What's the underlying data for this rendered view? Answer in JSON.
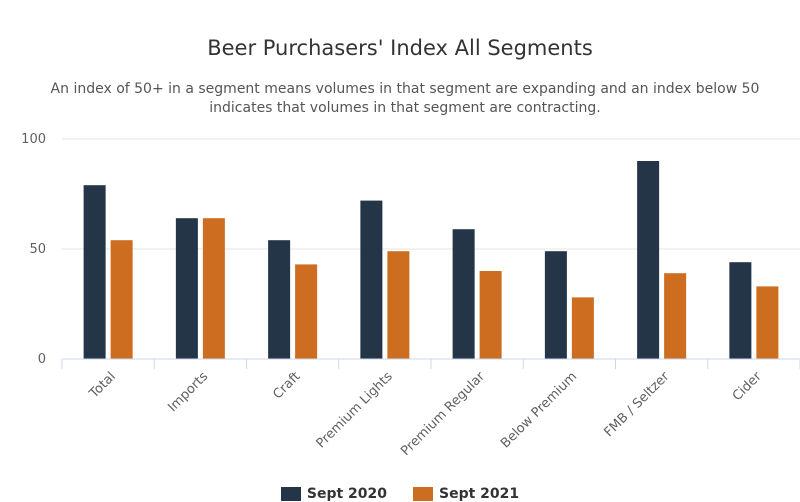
{
  "chart_data": {
    "type": "bar",
    "title": "Beer Purchasers' Index All Segments",
    "subtitle": "An index of 50+ in a segment means volumes in that segment are expanding and an index below 50 indicates that volumes in that segment are contracting.",
    "categories": [
      "Total",
      "Imports",
      "Craft",
      "Premium Lights",
      "Premium Regular",
      "Below Premium",
      "FMB / Seltzer",
      "Cider"
    ],
    "series": [
      {
        "name": "Sept 2020",
        "color": "#233546",
        "values": [
          79,
          64,
          54,
          72,
          59,
          49,
          90,
          44
        ]
      },
      {
        "name": "Sept 2021",
        "color": "#cc6d1f",
        "values": [
          54,
          64,
          43,
          49,
          40,
          28,
          39,
          33
        ]
      }
    ],
    "yticks": [
      0,
      50,
      100
    ],
    "ylim": [
      0,
      100
    ],
    "grid": true,
    "legend_position": "bottom-center"
  }
}
